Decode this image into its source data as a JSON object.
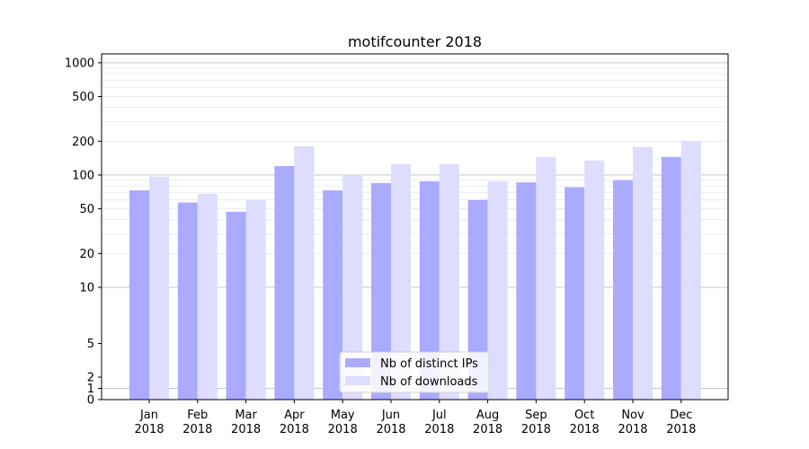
{
  "chart_data": {
    "type": "bar",
    "title": "motifcounter 2018",
    "xlabel": "",
    "ylabel": "",
    "yscale": "symlog",
    "ylim": [
      0,
      1200
    ],
    "yticks": [
      0,
      1,
      2,
      5,
      10,
      20,
      50,
      100,
      200,
      500,
      1000
    ],
    "grid": true,
    "legend_position": "bottom-center",
    "categories": [
      "Jan\n2018",
      "Feb\n2018",
      "Mar\n2018",
      "Apr\n2018",
      "May\n2018",
      "Jun\n2018",
      "Jul\n2018",
      "Aug\n2018",
      "Sep\n2018",
      "Oct\n2018",
      "Nov\n2018",
      "Dec\n2018"
    ],
    "category_lines": [
      [
        "Jan",
        "2018"
      ],
      [
        "Feb",
        "2018"
      ],
      [
        "Mar",
        "2018"
      ],
      [
        "Apr",
        "2018"
      ],
      [
        "May",
        "2018"
      ],
      [
        "Jun",
        "2018"
      ],
      [
        "Jul",
        "2018"
      ],
      [
        "Aug",
        "2018"
      ],
      [
        "Sep",
        "2018"
      ],
      [
        "Oct",
        "2018"
      ],
      [
        "Nov",
        "2018"
      ],
      [
        "Dec",
        "2018"
      ]
    ],
    "series": [
      {
        "name": "Nb of distinct IPs",
        "color": "#aaaaff",
        "values": [
          73,
          57,
          47,
          120,
          73,
          85,
          88,
          60,
          86,
          78,
          90,
          145
        ]
      },
      {
        "name": "Nb of downloads",
        "color": "#ddddff",
        "values": [
          97,
          68,
          60,
          180,
          100,
          125,
          125,
          88,
          145,
          135,
          178,
          200
        ]
      }
    ]
  }
}
